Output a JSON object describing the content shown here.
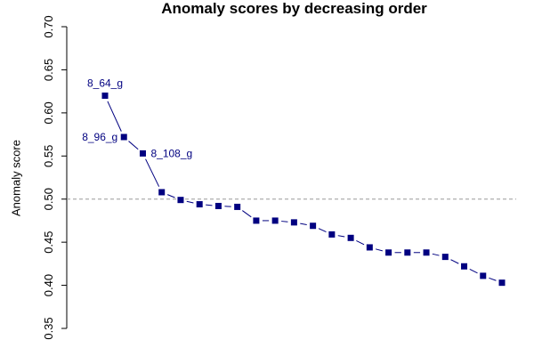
{
  "chart_data": {
    "type": "scatter",
    "title": "Anomaly scores by decreasing order",
    "xlabel": "",
    "ylabel": "Anomaly score",
    "ylim": [
      0.35,
      0.7
    ],
    "y_ticks": [
      "0.35",
      "0.40",
      "0.45",
      "0.50",
      "0.55",
      "0.60",
      "0.65",
      "0.70"
    ],
    "grid": false,
    "legend": "none",
    "threshold": 0.5,
    "series": [
      {
        "x": [
          1,
          2,
          3,
          4,
          5,
          6,
          7,
          8,
          9,
          10,
          11,
          12,
          13,
          14,
          15,
          16,
          17,
          18,
          19,
          20,
          21,
          22
        ],
        "values": [
          0.62,
          0.572,
          0.553,
          0.508,
          0.499,
          0.494,
          0.492,
          0.491,
          0.475,
          0.475,
          0.473,
          0.469,
          0.459,
          0.455,
          0.444,
          0.438,
          0.438,
          0.438,
          0.433,
          0.422,
          0.411,
          0.403
        ]
      }
    ],
    "annotations": [
      {
        "x": 1,
        "label": "8_64_g",
        "side": "above"
      },
      {
        "x": 2,
        "label": "8_96_g",
        "side": "left"
      },
      {
        "x": 3,
        "label": "8_108_g",
        "side": "right"
      }
    ],
    "colors": {
      "point": "#000080",
      "line": "#000080",
      "label": "#000080",
      "threshold": "#999999",
      "axis": "#000000"
    }
  }
}
